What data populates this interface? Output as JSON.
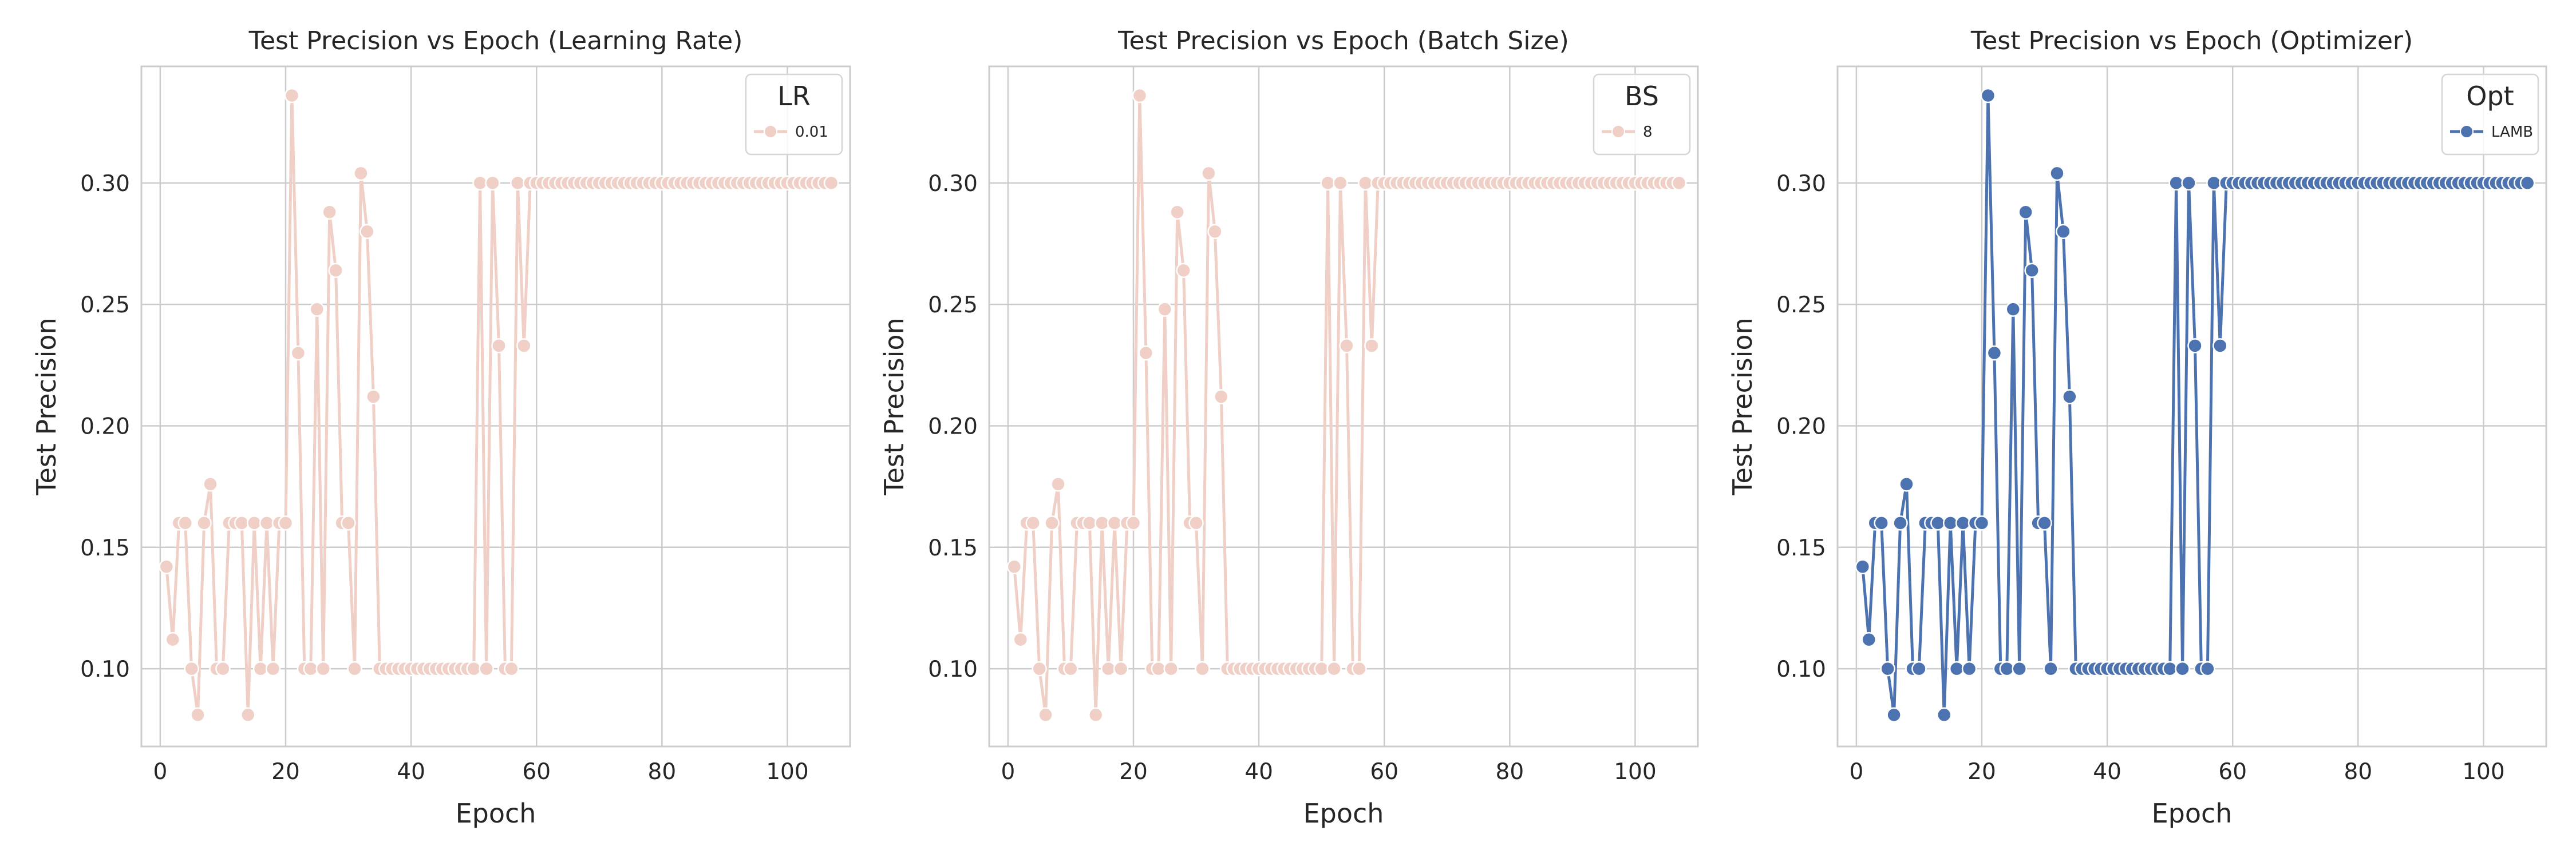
{
  "chart_data": [
    {
      "type": "line",
      "title": "Test Precision vs Epoch (Learning Rate)",
      "xlabel": "Epoch",
      "ylabel": "Test Precision",
      "xlim": [
        -3,
        110
      ],
      "ylim": [
        0.068,
        0.348
      ],
      "xticks": [
        0,
        20,
        40,
        60,
        80,
        100
      ],
      "yticks": [
        0.1,
        0.15,
        0.2,
        0.25,
        0.3
      ],
      "grid": true,
      "legend": {
        "title": "LR",
        "position": "top-right",
        "entries": [
          {
            "label": "0.01",
            "color": "#efcfc6"
          }
        ]
      },
      "series": [
        {
          "name": "0.01",
          "color": "#efcfc6",
          "y_ref": "shared"
        }
      ]
    },
    {
      "type": "line",
      "title": "Test Precision vs Epoch (Batch Size)",
      "xlabel": "Epoch",
      "ylabel": "Test Precision",
      "xlim": [
        -3,
        110
      ],
      "ylim": [
        0.068,
        0.348
      ],
      "xticks": [
        0,
        20,
        40,
        60,
        80,
        100
      ],
      "yticks": [
        0.1,
        0.15,
        0.2,
        0.25,
        0.3
      ],
      "grid": true,
      "legend": {
        "title": "BS",
        "position": "top-right",
        "entries": [
          {
            "label": "8",
            "color": "#efcfc6"
          }
        ]
      },
      "series": [
        {
          "name": "8",
          "color": "#efcfc6",
          "y_ref": "shared"
        }
      ]
    },
    {
      "type": "line",
      "title": "Test Precision vs Epoch (Optimizer)",
      "xlabel": "Epoch",
      "ylabel": "Test Precision",
      "xlim": [
        -3,
        110
      ],
      "ylim": [
        0.068,
        0.348
      ],
      "xticks": [
        0,
        20,
        40,
        60,
        80,
        100
      ],
      "yticks": [
        0.1,
        0.15,
        0.2,
        0.25,
        0.3
      ],
      "grid": true,
      "legend": {
        "title": "Opt",
        "position": "top-right",
        "entries": [
          {
            "label": "LAMB",
            "color": "#4c72b0"
          }
        ]
      },
      "series": [
        {
          "name": "LAMB",
          "color": "#4c72b0",
          "y_ref": "shared"
        }
      ]
    }
  ],
  "shared_series": {
    "x": [
      1,
      2,
      3,
      4,
      5,
      6,
      7,
      8,
      9,
      10,
      11,
      12,
      13,
      14,
      15,
      16,
      17,
      18,
      19,
      20,
      21,
      22,
      23,
      24,
      25,
      26,
      27,
      28,
      29,
      30,
      31,
      32,
      33,
      34,
      35,
      36,
      37,
      38,
      39,
      40,
      41,
      42,
      43,
      44,
      45,
      46,
      47,
      48,
      49,
      50,
      51,
      52,
      53,
      54,
      55,
      56,
      57,
      58,
      59,
      60,
      61,
      62,
      63,
      64,
      65,
      66,
      67,
      68,
      69,
      70,
      71,
      72,
      73,
      74,
      75,
      76,
      77,
      78,
      79,
      80,
      81,
      82,
      83,
      84,
      85,
      86,
      87,
      88,
      89,
      90,
      91,
      92,
      93,
      94,
      95,
      96,
      97,
      98,
      99,
      100,
      101,
      102,
      103,
      104,
      105,
      106,
      107
    ],
    "y": [
      0.142,
      0.112,
      0.16,
      0.16,
      0.1,
      0.081,
      0.16,
      0.176,
      0.1,
      0.1,
      0.16,
      0.16,
      0.16,
      0.081,
      0.16,
      0.1,
      0.16,
      0.1,
      0.16,
      0.16,
      0.336,
      0.23,
      0.1,
      0.1,
      0.248,
      0.1,
      0.288,
      0.264,
      0.16,
      0.16,
      0.1,
      0.304,
      0.28,
      0.212,
      0.1,
      0.1,
      0.1,
      0.1,
      0.1,
      0.1,
      0.1,
      0.1,
      0.1,
      0.1,
      0.1,
      0.1,
      0.1,
      0.1,
      0.1,
      0.1,
      0.3,
      0.1,
      0.3,
      0.233,
      0.1,
      0.1,
      0.3,
      0.233,
      0.3,
      0.3,
      0.3,
      0.3,
      0.3,
      0.3,
      0.3,
      0.3,
      0.3,
      0.3,
      0.3,
      0.3,
      0.3,
      0.3,
      0.3,
      0.3,
      0.3,
      0.3,
      0.3,
      0.3,
      0.3,
      0.3,
      0.3,
      0.3,
      0.3,
      0.3,
      0.3,
      0.3,
      0.3,
      0.3,
      0.3,
      0.3,
      0.3,
      0.3,
      0.3,
      0.3,
      0.3,
      0.3,
      0.3,
      0.3,
      0.3,
      0.3,
      0.3,
      0.3,
      0.3,
      0.3,
      0.3,
      0.3,
      0.3
    ]
  }
}
